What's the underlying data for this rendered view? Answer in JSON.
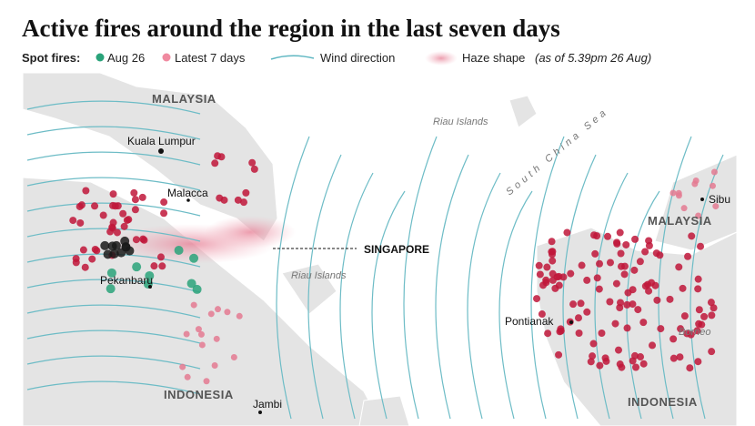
{
  "header": {
    "title": "Active fires around the region in the last seven days"
  },
  "legend": {
    "label": "Spot fires:",
    "items": [
      "Aug 26",
      "Latest 7 days",
      "Wind direction",
      "Haze shape"
    ],
    "note": "(as of 5.39pm 26 Aug)"
  },
  "places": [
    "MALAYSIA",
    "Kuala Lumpur",
    "Malacca",
    "Riau Islands",
    "South China Sea",
    "Sibu",
    "MALAYSIA",
    "SINGAPORE",
    "Riau Islands",
    "Pekanbaru",
    "Pontianak",
    "Borneo",
    "INDONESIA",
    "Jambi",
    "INDONESIA"
  ]
}
